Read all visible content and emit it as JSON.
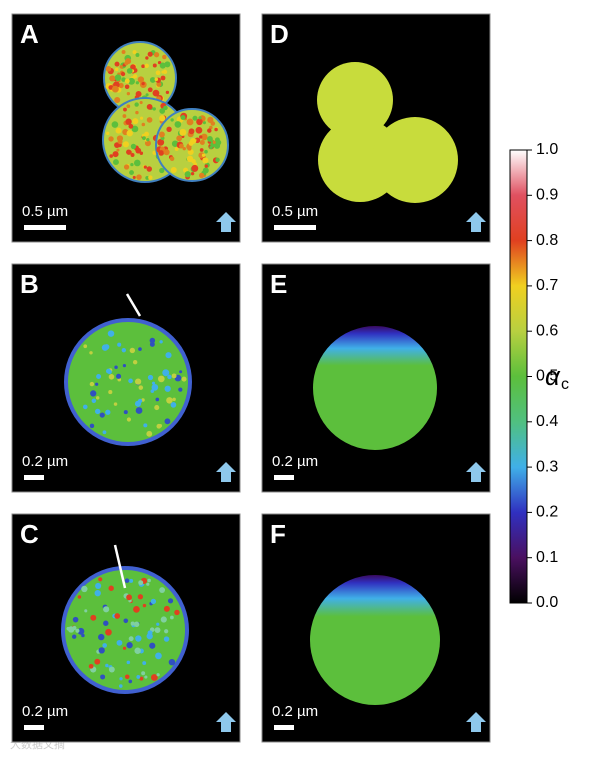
{
  "panels": [
    {
      "label": "A",
      "scale_bar": "0.5 µm"
    },
    {
      "label": "B",
      "scale_bar": "0.2 µm"
    },
    {
      "label": "C",
      "scale_bar": "0.2 µm"
    },
    {
      "label": "D",
      "scale_bar": "0.5 µm"
    },
    {
      "label": "E",
      "scale_bar": "0.2 µm"
    },
    {
      "label": "F",
      "scale_bar": "0.2 µm"
    }
  ],
  "colorbar": {
    "label": "α",
    "label_sub": "c",
    "lim": [
      0,
      1
    ],
    "ticks": [
      {
        "value": 0,
        "label": "0.0"
      },
      {
        "value": 0.1,
        "label": "0.1"
      },
      {
        "value": 0.2,
        "label": "0.2"
      },
      {
        "value": 0.3,
        "label": "0.3"
      },
      {
        "value": 0.4,
        "label": "0.4"
      },
      {
        "value": 0.5,
        "label": "0.5"
      },
      {
        "value": 0.6,
        "label": "0.6"
      },
      {
        "value": 0.7,
        "label": "0.7"
      },
      {
        "value": 0.8,
        "label": "0.8"
      },
      {
        "value": 0.9,
        "label": "0.9"
      },
      {
        "value": 1,
        "label": "1.0"
      }
    ]
  },
  "watermark": "大数据文摘"
}
